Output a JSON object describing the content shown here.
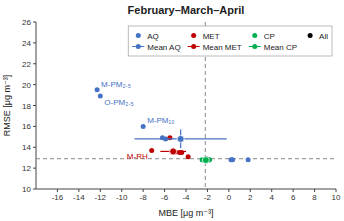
{
  "chart_data": {
    "type": "scatter",
    "title": "February–March–April",
    "xlabel": "MBE [μg m⁻³]",
    "ylabel": "RMSE [μg m⁻³]",
    "xlim": [
      -18,
      10
    ],
    "ylim": [
      10,
      26
    ],
    "xticks": [
      -16,
      -14,
      -12,
      -10,
      -8,
      -6,
      -4,
      -2,
      0,
      2,
      4,
      6,
      8,
      10
    ],
    "yticks": [
      10,
      12,
      14,
      16,
      18,
      20,
      22,
      24,
      26
    ],
    "grid": false,
    "legend": "upper right",
    "hline": 12.9,
    "vline": -2.2,
    "series": [
      {
        "name": "AQ",
        "type": "scatter",
        "color": "#4472C4",
        "x": [
          -12.3,
          -12.0,
          -8.0,
          -6.2,
          -5.9,
          0.2,
          0.35,
          1.8
        ],
        "values": [
          19.5,
          18.9,
          16.0,
          14.9,
          14.8,
          12.8,
          12.8,
          12.8
        ],
        "point_labels": [
          "M-PM₂.₅",
          "O-PM₂.₅",
          "M-PM₁₀",
          null,
          null,
          null,
          null,
          null
        ]
      },
      {
        "name": "MET",
        "type": "scatter",
        "color": "#C00000",
        "x": [
          -7.2,
          -5.5,
          -5.0,
          -4.6,
          -4.4,
          -3.8
        ],
        "values": [
          13.7,
          14.9,
          13.55,
          13.5,
          13.5,
          13.1
        ],
        "point_labels": [
          "M-RH",
          null,
          null,
          null,
          null,
          null
        ]
      },
      {
        "name": "CP",
        "type": "scatter",
        "color": "#00B050",
        "x": [
          -2.5,
          -2.3,
          -2.0,
          -1.8
        ],
        "values": [
          12.8,
          12.75,
          12.7,
          12.8
        ]
      },
      {
        "name": "All",
        "type": "scatter",
        "color": "#000000",
        "x": [
          -2.1
        ],
        "values": [
          12.82
        ]
      },
      {
        "name": "Mean AQ",
        "type": "errorbar",
        "color": "#4472C4",
        "x": [
          -4.5
        ],
        "values": [
          14.8
        ],
        "xerr": [
          4.3
        ],
        "yerr": [
          0.9
        ]
      },
      {
        "name": "Mean MET",
        "type": "errorbar",
        "color": "#C00000",
        "x": [
          -5.2
        ],
        "values": [
          13.6
        ],
        "xerr": [
          1.2
        ],
        "yerr": [
          0.35
        ]
      },
      {
        "name": "Mean CP",
        "type": "errorbar",
        "color": "#00B050",
        "x": [
          -2.15
        ],
        "values": [
          12.77
        ],
        "xerr": [
          0.3
        ],
        "yerr": [
          0.05
        ]
      }
    ]
  }
}
